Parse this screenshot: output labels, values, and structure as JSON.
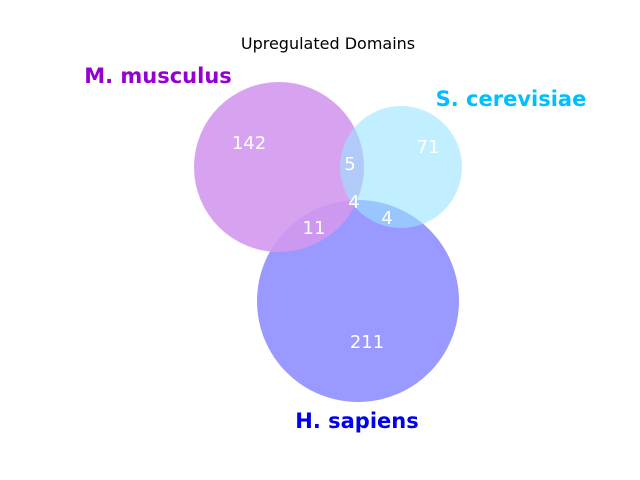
{
  "title": "Upregulated Domains",
  "sets": [
    {
      "name": "M. musculus",
      "color": "#9400D3",
      "fill": "#d399ee"
    },
    {
      "name": "S. cerevisiae",
      "color": "#00BFFF",
      "fill": "#99e5ff"
    },
    {
      "name": "H. sapiens",
      "color": "#0000EE",
      "fill": "#9999ff"
    }
  ],
  "regions": {
    "m_only": "142",
    "s_only": "71",
    "h_only": "211",
    "m_s": "5",
    "m_h": "11",
    "s_h": "4",
    "m_s_h": "4"
  }
}
